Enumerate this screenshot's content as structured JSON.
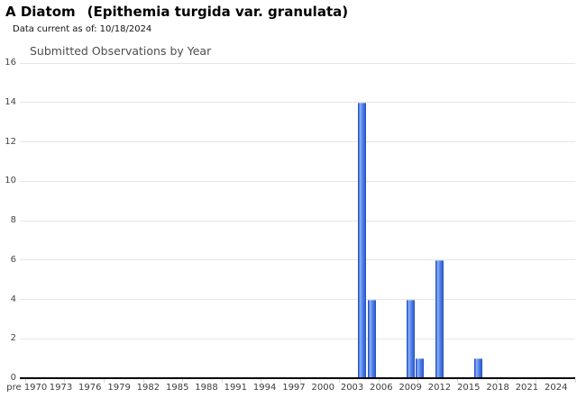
{
  "header": {
    "title_common": "A Diatom",
    "title_sci": "(Epithemia turgida var. granulata)",
    "data_current": "Data current as of: 10/18/2024"
  },
  "chart_data": {
    "type": "bar",
    "title": "Submitted Observations by Year",
    "xlabel": "",
    "ylabel": "",
    "ylim": [
      0,
      16
    ],
    "y_ticks": [
      0,
      2,
      4,
      6,
      8,
      10,
      12,
      14,
      16
    ],
    "grid": true,
    "legend_position": "none",
    "x_domain": {
      "first_category": "pre 1970",
      "start_year": 1970,
      "end_year": 2024,
      "label_step": 3
    },
    "x_tick_labels": [
      "pre 1970",
      "1973",
      "1976",
      "1979",
      "1982",
      "1985",
      "1988",
      "1991",
      "1994",
      "1997",
      "2000",
      "2003",
      "2006",
      "2009",
      "2012",
      "2015",
      "2018",
      "2021",
      "2024"
    ],
    "bars": [
      {
        "year": 2004,
        "count": 14
      },
      {
        "year": 2005,
        "count": 4
      },
      {
        "year": 2009,
        "count": 4
      },
      {
        "year": 2010,
        "count": 1
      },
      {
        "year": 2012,
        "count": 6
      },
      {
        "year": 2016,
        "count": 1
      }
    ],
    "colors": {
      "bar": "#3366cc",
      "bar_gradient": [
        "#1f4cb8",
        "#8fb2f4",
        "#5583e9",
        "#1f4cb8"
      ],
      "gridline": "#e6e6e6",
      "axis": "#000000",
      "tick_label": "#444444",
      "title": "#4d4d4d"
    }
  }
}
